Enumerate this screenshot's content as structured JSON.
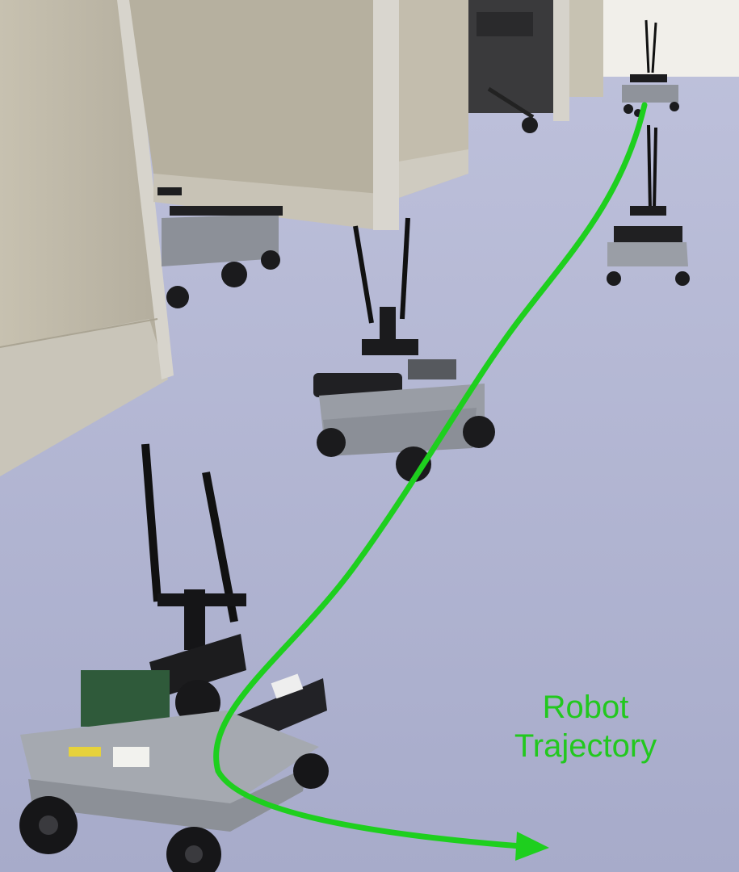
{
  "scene": {
    "description_free": true,
    "trajectory_label_line1": "Robot",
    "trajectory_label_line2": "Trajectory",
    "colors": {
      "trajectory": "#1ecf1e",
      "floor": "#aab0cf",
      "partition": "#c9c4b6",
      "robot_plate": "#9a9ea6",
      "wheel": "#1b1b1d"
    }
  }
}
